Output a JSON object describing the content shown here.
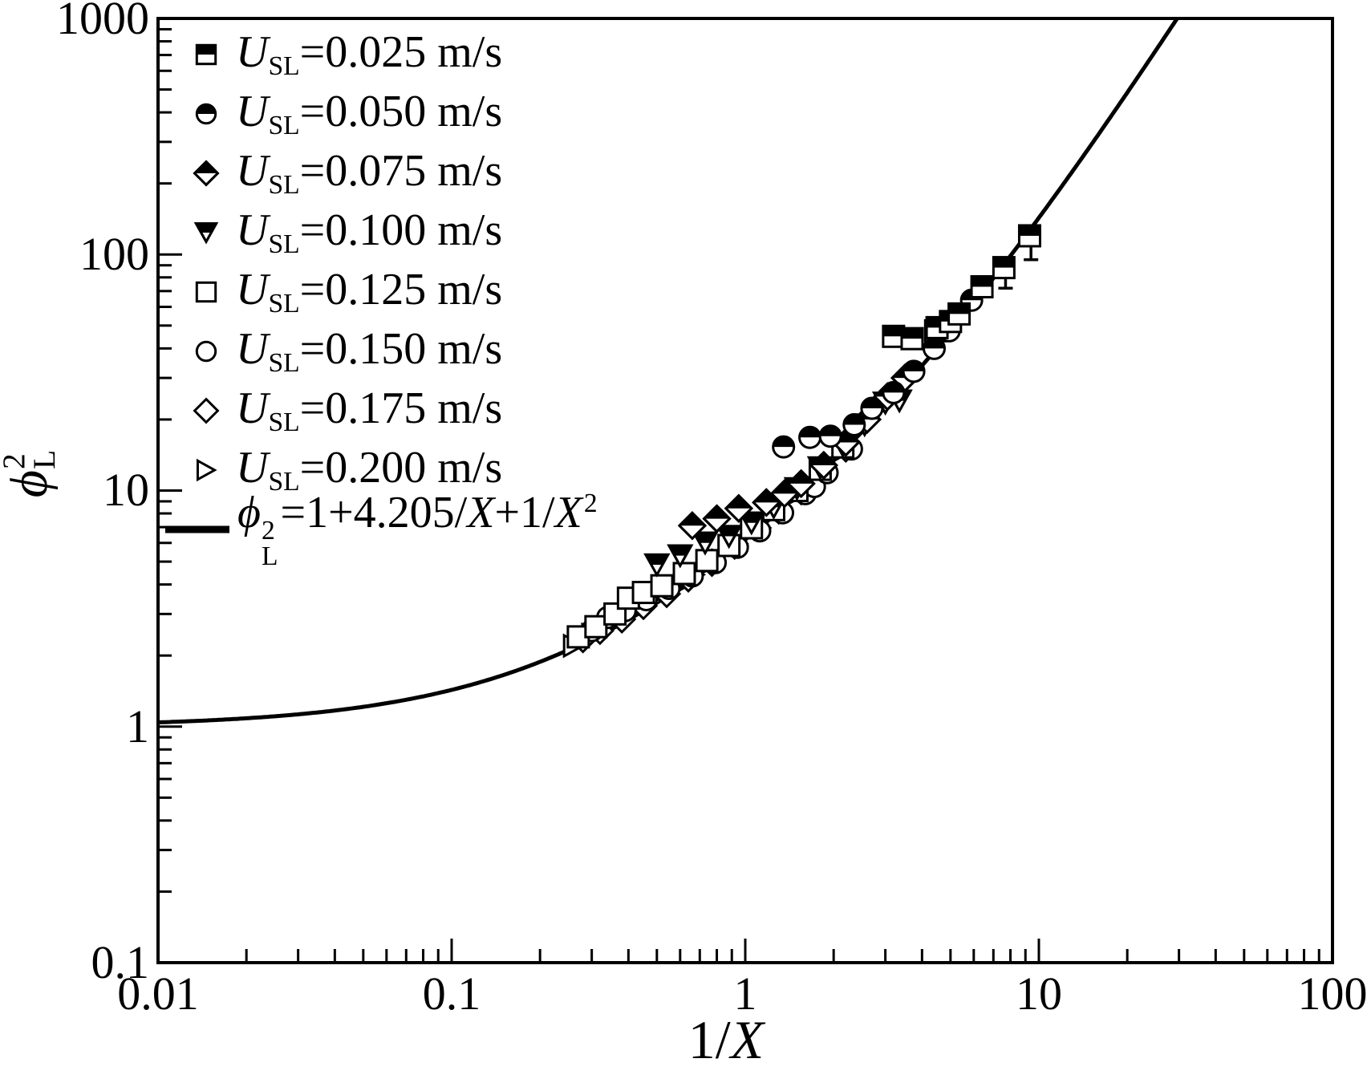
{
  "figure": {
    "background": "#ffffff",
    "ink": "#000000"
  },
  "axes": {
    "x": {
      "label_pre": "1/",
      "label_var": "X",
      "ticks": [
        {
          "v": 0.01,
          "label": "0.01"
        },
        {
          "v": 0.1,
          "label": "0.1"
        },
        {
          "v": 1,
          "label": "1"
        },
        {
          "v": 10,
          "label": "10"
        },
        {
          "v": 100,
          "label": "100"
        }
      ]
    },
    "y": {
      "label_phi": "ϕ",
      "label_sup": "2",
      "label_sub": "L",
      "ticks": [
        {
          "v": 0.1,
          "label": "0.1"
        },
        {
          "v": 1,
          "label": "1"
        },
        {
          "v": 10,
          "label": "10"
        },
        {
          "v": 100,
          "label": "100"
        },
        {
          "v": 1000,
          "label": "1000"
        }
      ]
    }
  },
  "legend": {
    "var": "U",
    "var_sub": "SL",
    "entries": [
      {
        "marker": "square-halftop",
        "value": "=0.025 m/s"
      },
      {
        "marker": "circle-halftop",
        "value": "=0.050 m/s"
      },
      {
        "marker": "diamond-halftop",
        "value": "=0.075 m/s"
      },
      {
        "marker": "triangle-down-halftop",
        "value": "=0.100 m/s"
      },
      {
        "marker": "square-open",
        "value": "=0.125 m/s"
      },
      {
        "marker": "circle-open",
        "value": "=0.150 m/s"
      },
      {
        "marker": "diamond-open",
        "value": "=0.175 m/s"
      },
      {
        "marker": "triangle-right-open",
        "value": "=0.200 m/s"
      }
    ],
    "equation": {
      "phi": "ϕ",
      "sup": "2",
      "sub": "L",
      "mid": "=1+4.205/",
      "x1": "X",
      "plus": "+1/",
      "x2": "X",
      "sup2": "2"
    }
  },
  "chart_data": {
    "type": "scatter",
    "x_scale": "log",
    "y_scale": "log",
    "xlabel": "1/X",
    "ylabel": "phi_L^2",
    "xlim": [
      0.01,
      100
    ],
    "ylim": [
      0.1,
      1000
    ],
    "x_ticks": [
      0.01,
      0.1,
      1,
      10,
      100
    ],
    "y_ticks": [
      0.1,
      1,
      10,
      100,
      1000
    ],
    "grid": false,
    "legend_position": "upper-left-inside",
    "curve": {
      "label": "phi_L^2 = 1 + 4.205/X + 1/X^2",
      "coeffs": {
        "const": 1,
        "inv_x": 4.205,
        "inv_x2": 1
      },
      "t_min": 0.01,
      "t_max": 31
    },
    "series": [
      {
        "name": "USL=0.025 m/s",
        "marker": "square-halftop",
        "points": [
          [
            3.2,
            45
          ],
          [
            3.7,
            44
          ],
          [
            4.5,
            49
          ],
          [
            5.0,
            52
          ],
          [
            5.35,
            56
          ],
          [
            6.4,
            73
          ],
          [
            7.6,
            88
          ],
          [
            9.3,
            120
          ]
        ]
      },
      {
        "name": "USL=0.050 m/s",
        "marker": "circle-halftop",
        "points": [
          [
            1.35,
            15.3
          ],
          [
            1.66,
            16.8
          ],
          [
            1.95,
            17.0
          ],
          [
            2.35,
            19.0
          ],
          [
            2.7,
            22.3
          ],
          [
            3.2,
            26
          ],
          [
            3.75,
            32
          ],
          [
            4.4,
            40
          ],
          [
            4.95,
            47.5
          ],
          [
            5.9,
            64
          ]
        ]
      },
      {
        "name": "USL=0.075 m/s",
        "marker": "diamond-halftop",
        "points": [
          [
            0.66,
            7.1
          ],
          [
            0.8,
            7.6
          ],
          [
            0.95,
            8.4
          ],
          [
            1.18,
            8.9
          ],
          [
            1.36,
            9.7
          ],
          [
            1.55,
            10.7
          ],
          [
            1.85,
            12.8
          ],
          [
            2.2,
            16.0
          ],
          [
            2.6,
            20.0
          ],
          [
            3.05,
            25.0
          ],
          [
            3.5,
            30.0
          ]
        ]
      },
      {
        "name": "USL=0.100 m/s",
        "marker": "triangle-down-halftop",
        "points": [
          [
            0.5,
            4.85
          ],
          [
            0.6,
            5.3
          ],
          [
            0.73,
            6.0
          ],
          [
            0.88,
            6.4
          ],
          [
            1.05,
            7.3
          ],
          [
            1.25,
            8.5
          ],
          [
            1.5,
            10.2
          ],
          [
            1.8,
            12.5
          ],
          [
            2.15,
            15.5
          ],
          [
            2.55,
            19.0
          ],
          [
            3.0,
            23.5
          ],
          [
            3.35,
            24.0
          ]
        ]
      },
      {
        "name": "USL=0.125 m/s",
        "marker": "square-open",
        "points": [
          [
            0.27,
            2.4
          ],
          [
            0.31,
            2.65
          ],
          [
            0.36,
            3.0
          ],
          [
            0.4,
            3.5
          ],
          [
            0.45,
            3.7
          ],
          [
            0.52,
            3.95
          ],
          [
            0.62,
            4.45
          ],
          [
            0.74,
            5.05
          ],
          [
            0.88,
            5.85
          ],
          [
            1.05,
            6.95
          ],
          [
            1.25,
            8.3
          ],
          [
            1.5,
            10.0
          ],
          [
            1.8,
            12.3
          ],
          [
            2.15,
            15.3
          ],
          [
            4.45,
            47.5
          ]
        ]
      },
      {
        "name": "USL=0.150 m/s",
        "marker": "circle-open",
        "points": [
          [
            0.3,
            2.55
          ],
          [
            0.34,
            2.9
          ],
          [
            0.39,
            3.1
          ],
          [
            0.46,
            3.45
          ],
          [
            0.55,
            3.85
          ],
          [
            0.66,
            4.35
          ],
          [
            0.79,
            4.95
          ],
          [
            0.94,
            5.75
          ],
          [
            1.12,
            6.75
          ],
          [
            1.34,
            8.05
          ],
          [
            1.6,
            9.7
          ],
          [
            1.72,
            10.4
          ],
          [
            1.9,
            11.9
          ],
          [
            2.3,
            15.0
          ]
        ]
      },
      {
        "name": "USL=0.175 m/s",
        "marker": "diamond-open",
        "points": [
          [
            0.28,
            2.35
          ],
          [
            0.32,
            2.55
          ],
          [
            0.38,
            2.85
          ],
          [
            0.45,
            3.25
          ],
          [
            0.54,
            3.65
          ],
          [
            0.64,
            4.25
          ],
          [
            0.77,
            4.95
          ],
          [
            0.92,
            5.85
          ],
          [
            1.1,
            6.95
          ],
          [
            1.3,
            8.25
          ],
          [
            1.55,
            9.95
          ],
          [
            1.85,
            12.15
          ],
          [
            2.2,
            15.1
          ]
        ]
      },
      {
        "name": "USL=0.200 m/s",
        "marker": "triangle-right-open",
        "points": [
          [
            0.26,
            2.2
          ],
          [
            0.3,
            2.45
          ],
          [
            0.35,
            2.7
          ],
          [
            0.41,
            3.05
          ],
          [
            0.48,
            3.4
          ],
          [
            0.57,
            3.85
          ],
          [
            0.67,
            4.4
          ],
          [
            0.79,
            5.05
          ],
          [
            0.94,
            5.95
          ],
          [
            1.11,
            7.0
          ],
          [
            1.31,
            8.3
          ],
          [
            1.55,
            9.9
          ],
          [
            1.83,
            12.0
          ],
          [
            2.16,
            14.8
          ]
        ]
      }
    ],
    "error_bars": [
      {
        "x": 7.7,
        "y_top": 88,
        "y_bottom": 72
      },
      {
        "x": 9.4,
        "y_top": 120,
        "y_bottom": 95
      }
    ]
  }
}
